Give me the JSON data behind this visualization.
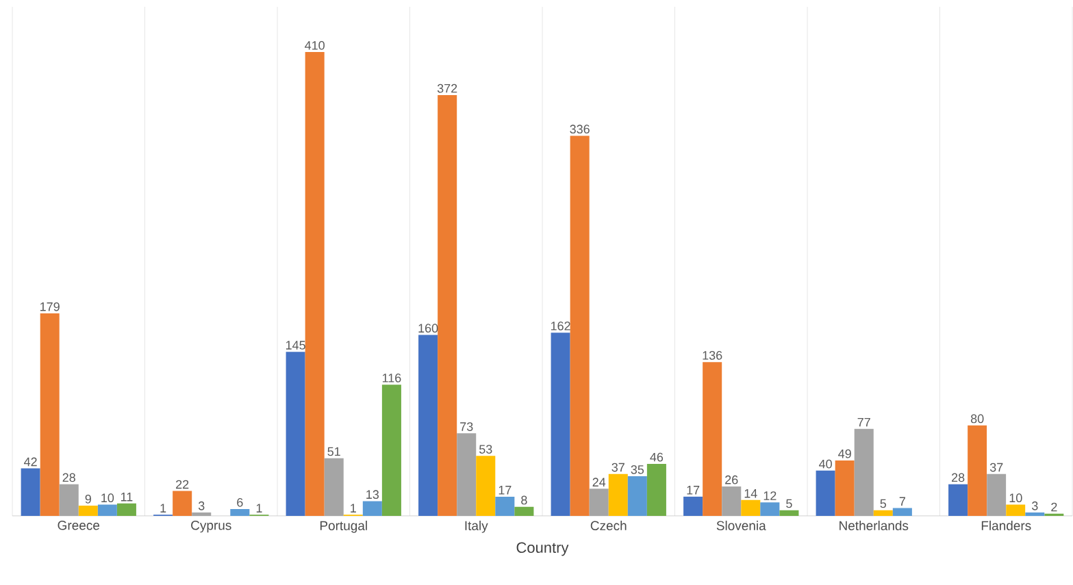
{
  "chart_data": {
    "type": "bar",
    "xlabel": "Country",
    "categories": [
      "Greece",
      "Cyprus",
      "Portugal",
      "Italy",
      "Czech",
      "Slovenia",
      "Netherlands",
      "Flanders"
    ],
    "series": [
      {
        "color": "#4472c4",
        "values": [
          42,
          1,
          145,
          160,
          162,
          17,
          40,
          28
        ]
      },
      {
        "color": "#ed7d31",
        "values": [
          179,
          22,
          410,
          372,
          336,
          136,
          49,
          80
        ]
      },
      {
        "color": "#a5a5a5",
        "values": [
          28,
          3,
          51,
          73,
          24,
          26,
          77,
          37
        ]
      },
      {
        "color": "#ffc000",
        "values": [
          9,
          null,
          1,
          53,
          37,
          14,
          5,
          10
        ]
      },
      {
        "color": "#5b9bd5",
        "values": [
          10,
          6,
          13,
          17,
          35,
          12,
          7,
          3
        ]
      },
      {
        "color": "#70ad47",
        "values": [
          11,
          1,
          116,
          8,
          46,
          5,
          null,
          2
        ]
      }
    ],
    "ylim": [
      0,
      450
    ],
    "grid": "x",
    "tick_labels": "x",
    "data_labels": true
  }
}
